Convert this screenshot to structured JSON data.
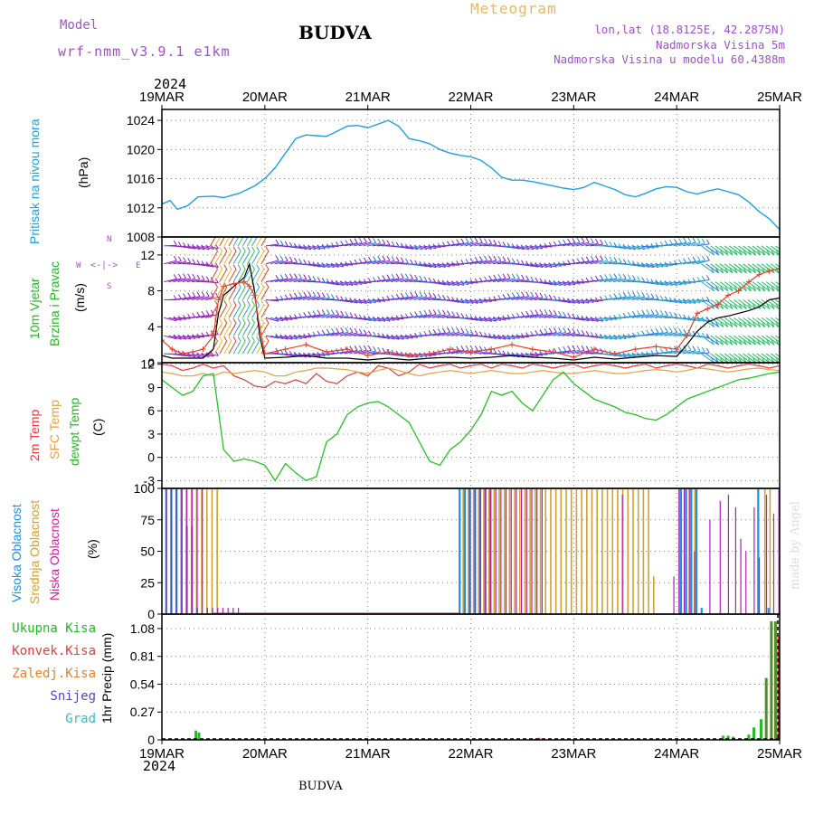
{
  "header": {
    "model_label": "Model",
    "model_name": "wrf-nmm_v3.9.1 e1km",
    "title": "BUDVA",
    "meteogram_label": "Meteogram",
    "lonlat": "lon,lat (18.8125E, 42.2875N)",
    "elevation": "Nadmorska Visina 5m",
    "model_elevation": "Nadmorska Visina u modelu 60.4388m",
    "footer_title": "BUDVA",
    "watermark": "made by Angel"
  },
  "colors": {
    "pressure": "#1ea0e6",
    "wind_speed": "#e8402a",
    "wind_gust": "#000000",
    "temp_2m": "#e03c3c",
    "temp_sfc": "#e8a040",
    "dewpoint": "#22c422",
    "cloud_high": "#1e90e6",
    "cloud_mid": "#d4a030",
    "cloud_low": "#b020b0",
    "precip_total": "#22bb22",
    "precip_conv": "#e83c3c",
    "precip_freezing": "#e88030",
    "snow": "#4848e0",
    "hail": "#30c0c0",
    "purple_text": "#a050d0",
    "gold_text": "#e8b860",
    "grid": "#888888"
  },
  "time_axis": {
    "year": "2024",
    "ticks": [
      "19MAR",
      "20MAR",
      "21MAR",
      "22MAR",
      "23MAR",
      "24MAR",
      "25MAR"
    ]
  },
  "labels": {
    "pressure_title": "Pritisak na nivou mora",
    "pressure_unit": "(hPa)",
    "wind_title1": "10m Vjetar",
    "wind_title2": "Brzina i Pravac",
    "wind_unit": "(m/s)",
    "compass_n": "N",
    "compass_w": "W",
    "compass_e": "E",
    "compass_s": "S",
    "temp_title1": "2m Temp",
    "temp_title2": "SFC Temp",
    "temp_title3": "dewpt Temp",
    "temp_unit": "(C)",
    "cloud_title1": "Visoka Oblacnost",
    "cloud_title2": "Srednja Oblacnost",
    "cloud_title3": "Niska Oblacnost",
    "cloud_unit": "(%)",
    "precip_unit": "1hr Precip (mm)",
    "legend_total": "Ukupna Kisa",
    "legend_conv": "Konvek.Kisa",
    "legend_freezing": "Zaledj.Kisa",
    "legend_snow": "Snijeg",
    "legend_hail": "Grad"
  },
  "chart_data": [
    {
      "type": "line",
      "name": "pressure",
      "ylabel": "(hPa)",
      "ylim": [
        1008,
        1025.5
      ],
      "yticks": [
        "1008",
        "1012",
        "1016",
        "1020",
        "1024"
      ],
      "yticks_values": [
        1008,
        1012,
        1016,
        1020,
        1024
      ],
      "x_days": [
        0,
        0.08,
        0.15,
        0.25,
        0.35,
        0.5,
        0.6,
        0.75,
        0.9,
        1.0,
        1.1,
        1.2,
        1.3,
        1.4,
        1.5,
        1.6,
        1.7,
        1.8,
        1.9,
        2.0,
        2.1,
        2.2,
        2.3,
        2.4,
        2.5,
        2.6,
        2.7,
        2.8,
        2.9,
        3.0,
        3.1,
        3.2,
        3.3,
        3.4,
        3.5,
        3.6,
        3.7,
        3.8,
        3.9,
        4.0,
        4.1,
        4.2,
        4.3,
        4.4,
        4.5,
        4.6,
        4.7,
        4.8,
        4.9,
        5.0,
        5.1,
        5.2,
        5.3,
        5.4,
        5.5,
        5.6,
        5.7,
        5.8,
        5.9,
        6.0
      ],
      "series": [
        {
          "values": [
            1012.5,
            1013.0,
            1011.8,
            1012.3,
            1013.5,
            1013.6,
            1013.4,
            1014.0,
            1015.0,
            1016.0,
            1017.5,
            1019.5,
            1021.5,
            1022.0,
            1021.9,
            1021.8,
            1022.5,
            1023.2,
            1023.3,
            1023.0,
            1023.5,
            1024.0,
            1023.2,
            1021.5,
            1021.2,
            1020.8,
            1020.0,
            1019.5,
            1019.2,
            1019.0,
            1018.5,
            1017.5,
            1016.2,
            1015.8,
            1015.8,
            1015.6,
            1015.3,
            1015.0,
            1014.7,
            1014.5,
            1014.8,
            1015.5,
            1015.0,
            1014.5,
            1013.8,
            1013.5,
            1014.0,
            1014.6,
            1014.9,
            1014.8,
            1014.2,
            1013.9,
            1014.3,
            1014.6,
            1014.2,
            1013.8,
            1012.8,
            1011.5,
            1010.5,
            1009.0
          ]
        }
      ]
    },
    {
      "type": "line",
      "name": "wind",
      "ylabel": "(m/s)",
      "ylim": [
        0,
        14
      ],
      "yticks": [
        "0",
        "4",
        "8",
        "12"
      ],
      "yticks_values": [
        0,
        4,
        8,
        12
      ],
      "x_days": [
        0,
        0.1,
        0.2,
        0.3,
        0.4,
        0.5,
        0.55,
        0.6,
        0.7,
        0.8,
        0.85,
        0.9,
        0.95,
        1.0,
        1.2,
        1.4,
        1.6,
        1.8,
        2.0,
        2.2,
        2.4,
        2.6,
        2.8,
        3.0,
        3.2,
        3.4,
        3.6,
        3.8,
        4.0,
        4.2,
        4.4,
        4.6,
        4.8,
        5.0,
        5.1,
        5.2,
        5.3,
        5.4,
        5.5,
        5.6,
        5.7,
        5.8,
        5.9,
        6.0
      ],
      "series": [
        {
          "name": "speed",
          "values": [
            2.5,
            1.5,
            1.0,
            1.2,
            1.5,
            3.0,
            7.0,
            8.5,
            8.8,
            9.0,
            8.5,
            7.5,
            4.0,
            1.0,
            1.5,
            2.0,
            1.2,
            1.5,
            0.8,
            1.2,
            0.8,
            1.0,
            1.5,
            1.2,
            1.5,
            2.0,
            1.5,
            1.2,
            0.6,
            1.5,
            1.0,
            1.5,
            1.8,
            1.5,
            3.0,
            5.5,
            6.0,
            6.5,
            7.5,
            8.0,
            9.0,
            9.8,
            10.2,
            10.5
          ]
        },
        {
          "name": "gust",
          "values": [
            0.8,
            0.5,
            0.5,
            0.5,
            0.5,
            1.5,
            5.5,
            7.5,
            8.5,
            9.5,
            11.0,
            8.0,
            3.0,
            0.5,
            0.6,
            0.8,
            0.5,
            0.5,
            0.3,
            0.5,
            0.3,
            0.5,
            0.6,
            0.5,
            0.6,
            0.8,
            0.6,
            0.5,
            0.3,
            0.6,
            0.4,
            0.6,
            0.8,
            0.7,
            2.0,
            3.5,
            4.5,
            5.0,
            5.2,
            5.5,
            5.8,
            6.2,
            7.0,
            7.2
          ]
        }
      ]
    },
    {
      "type": "line",
      "name": "temperature",
      "ylabel": "(C)",
      "ylim": [
        -4,
        12.2
      ],
      "yticks": [
        "-3",
        "0",
        "3",
        "6",
        "9",
        "12"
      ],
      "yticks_values": [
        -3,
        0,
        3,
        6,
        9,
        12
      ],
      "x_days": [
        0,
        0.1,
        0.2,
        0.3,
        0.4,
        0.5,
        0.6,
        0.7,
        0.8,
        0.9,
        1.0,
        1.1,
        1.2,
        1.3,
        1.4,
        1.5,
        1.6,
        1.7,
        1.8,
        1.9,
        2.0,
        2.1,
        2.2,
        2.3,
        2.4,
        2.5,
        2.6,
        2.7,
        2.8,
        2.9,
        3.0,
        3.1,
        3.2,
        3.3,
        3.4,
        3.5,
        3.6,
        3.7,
        3.8,
        3.9,
        4.0,
        4.1,
        4.2,
        4.3,
        4.4,
        4.5,
        4.6,
        4.7,
        4.8,
        4.9,
        5.0,
        5.1,
        5.2,
        5.3,
        5.4,
        5.5,
        5.6,
        5.7,
        5.8,
        5.9,
        6.0
      ],
      "series": [
        {
          "name": "2m",
          "values": [
            12.0,
            11.8,
            11.2,
            11.5,
            12.0,
            11.5,
            11.8,
            10.5,
            10.0,
            9.2,
            9.0,
            9.8,
            9.5,
            10.0,
            9.5,
            10.8,
            9.8,
            9.5,
            10.5,
            11.0,
            10.5,
            11.8,
            11.5,
            10.5,
            11.0,
            12.0,
            11.5,
            11.8,
            12.0,
            11.5,
            11.8,
            12.0,
            11.5,
            12.0,
            11.8,
            11.5,
            12.0,
            11.8,
            11.5,
            11.8,
            12.0,
            11.5,
            11.8,
            12.0,
            11.8,
            11.5,
            11.8,
            12.0,
            11.5,
            11.8,
            12.0,
            11.8,
            11.5,
            12.0,
            11.8,
            11.5,
            11.8,
            12.0,
            11.8,
            11.5,
            11.8
          ]
        },
        {
          "name": "sfc",
          "values": [
            11.0,
            10.8,
            10.5,
            10.5,
            10.8,
            10.5,
            11.0,
            10.8,
            11.0,
            11.2,
            11.0,
            10.5,
            10.5,
            11.0,
            11.2,
            11.5,
            11.5,
            11.4,
            11.3,
            11.0,
            10.8,
            11.2,
            11.5,
            11.2,
            10.8,
            10.5,
            10.8,
            11.0,
            11.2,
            11.0,
            10.8,
            11.0,
            11.2,
            11.0,
            10.8,
            10.8,
            11.0,
            11.2,
            11.0,
            10.8,
            10.8,
            11.0,
            11.2,
            11.0,
            10.8,
            10.8,
            11.0,
            11.2,
            11.3,
            11.2,
            11.0,
            11.2,
            11.5,
            11.4,
            11.2,
            11.0,
            11.2,
            11.4,
            11.5,
            11.3,
            11.2
          ]
        },
        {
          "name": "dewpt",
          "values": [
            10.0,
            9.0,
            8.0,
            8.5,
            10.5,
            10.8,
            1.0,
            -0.5,
            -0.2,
            -0.5,
            -1.0,
            -3.0,
            -0.8,
            -2.0,
            -3.0,
            -2.5,
            2.0,
            3.0,
            5.5,
            6.5,
            7.0,
            7.2,
            6.5,
            5.5,
            4.5,
            2.0,
            -0.5,
            -1.0,
            1.0,
            2.0,
            3.5,
            5.5,
            8.5,
            8.0,
            8.5,
            7.0,
            6.0,
            8.0,
            10.0,
            11.0,
            9.5,
            8.5,
            7.5,
            7.0,
            6.5,
            5.8,
            5.5,
            5.0,
            4.8,
            5.5,
            6.5,
            7.5,
            8.0,
            8.5,
            9.0,
            9.5,
            10.0,
            10.2,
            10.5,
            10.8,
            11.0
          ]
        }
      ]
    },
    {
      "type": "bar",
      "name": "cloud_cover",
      "ylabel": "(%)",
      "ylim": [
        0,
        100
      ],
      "yticks": [
        "0",
        "25",
        "50",
        "75",
        "100"
      ],
      "yticks_values": [
        0,
        25,
        50,
        75,
        100
      ],
      "series": [
        {
          "name": "high",
          "x_days": [
            0.05,
            0.1,
            0.15,
            0.2,
            0.25,
            0.3,
            0.35,
            2.9,
            2.95,
            3.0,
            3.05,
            3.1,
            3.15,
            3.2,
            3.25,
            3.3,
            3.35,
            3.4,
            3.45,
            3.5,
            3.55,
            3.6,
            3.65,
            3.7,
            3.75,
            3.8,
            3.85,
            3.9,
            3.95,
            4.0,
            4.05,
            4.1,
            4.15,
            4.2,
            4.25,
            4.3,
            4.35,
            4.4,
            4.45,
            4.5,
            4.55,
            4.6,
            4.65,
            4.7,
            4.75,
            4.8,
            4.85,
            4.9,
            4.95,
            5.0,
            5.05,
            5.1,
            5.15,
            5.2,
            5.25,
            5.3,
            5.35,
            5.4,
            5.45,
            5.5,
            5.55,
            5.6,
            5.65,
            5.7,
            5.75,
            5.8,
            5.85,
            5.9
          ],
          "values": [
            100,
            100,
            100,
            100,
            70,
            70,
            5,
            100,
            100,
            100,
            100,
            100,
            100,
            100,
            0,
            0,
            0,
            0,
            0,
            0,
            0,
            0,
            0,
            0,
            0,
            0,
            0,
            0,
            0,
            0,
            0,
            0,
            0,
            0,
            0,
            0,
            0,
            0,
            0,
            0,
            0,
            0,
            0,
            0,
            0,
            0,
            0,
            0,
            0,
            0,
            100,
            100,
            100,
            100,
            5,
            0,
            0,
            0,
            0,
            0,
            0,
            0,
            0,
            0,
            0,
            100,
            0,
            5
          ]
        },
        {
          "name": "middle",
          "x_days": [
            0.08,
            0.13,
            0.18,
            0.23,
            0.28,
            0.33,
            0.38,
            0.43,
            0.48,
            0.53,
            2.92,
            2.97,
            3.02,
            3.07,
            3.12,
            3.17,
            3.22,
            3.27,
            3.32,
            3.37,
            3.42,
            3.47,
            3.52,
            3.57,
            3.62,
            3.67,
            3.72,
            3.77,
            3.82,
            3.87,
            3.92,
            3.97,
            4.02,
            4.07,
            4.12,
            4.17,
            4.22,
            4.27,
            4.32,
            4.37,
            4.42,
            4.47,
            4.52,
            4.57,
            4.62,
            4.67,
            4.72,
            4.77,
            5.02,
            5.07,
            5.12,
            5.17,
            5.85,
            5.9
          ],
          "values": [
            100,
            100,
            100,
            100,
            100,
            100,
            100,
            100,
            100,
            100,
            100,
            100,
            100,
            100,
            100,
            100,
            100,
            100,
            100,
            100,
            100,
            100,
            100,
            100,
            100,
            100,
            100,
            100,
            100,
            100,
            100,
            100,
            100,
            100,
            100,
            100,
            100,
            100,
            100,
            100,
            100,
            100,
            100,
            100,
            100,
            100,
            100,
            30,
            100,
            100,
            100,
            100,
            100,
            100
          ]
        },
        {
          "name": "low",
          "x_days": [
            0.02,
            0.07,
            0.12,
            0.17,
            0.22,
            0.27,
            0.32,
            0.37,
            0.42,
            0.47,
            0.52,
            0.57,
            0.62,
            0.67,
            0.72,
            2.97,
            3.02,
            3.07,
            3.12,
            3.17,
            3.22,
            3.27,
            3.32,
            3.37,
            3.42,
            3.47,
            3.52,
            3.57,
            3.62,
            3.67,
            4.45,
            4.95,
            5.0,
            5.05,
            5.1,
            5.15,
            5.3,
            5.4,
            5.48,
            5.55,
            5.6,
            5.65,
            5.73,
            5.78,
            5.85,
            5.92,
            5.97
          ],
          "values": [
            100,
            100,
            100,
            100,
            100,
            100,
            100,
            100,
            5,
            5,
            5,
            5,
            5,
            5,
            5,
            100,
            100,
            100,
            100,
            100,
            100,
            100,
            100,
            100,
            100,
            100,
            100,
            100,
            100,
            100,
            95,
            30,
            100,
            100,
            100,
            50,
            75,
            90,
            95,
            85,
            60,
            50,
            85,
            45,
            95,
            80,
            100
          ]
        }
      ]
    },
    {
      "type": "bar",
      "name": "precipitation",
      "ylabel": "1hr Precip (mm)",
      "ylim": [
        0,
        1.22
      ],
      "yticks": [
        "0",
        "0.27",
        "0.54",
        "0.81",
        "1.08"
      ],
      "yticks_values": [
        0,
        0.27,
        0.54,
        0.81,
        1.08
      ],
      "series": [
        {
          "name": "total",
          "x_days": [
            0.3,
            0.33,
            0.36,
            5.45,
            5.5,
            5.55,
            5.7,
            5.75,
            5.82,
            5.87,
            5.92,
            5.96
          ],
          "values": [
            0.01,
            0.09,
            0.07,
            0.04,
            0.04,
            0.03,
            0.05,
            0.12,
            0.2,
            0.6,
            1.15,
            1.15
          ]
        },
        {
          "name": "convective",
          "x_days": [
            3.6,
            3.65,
            5.97
          ],
          "values": [
            0.01,
            0.02,
            1.0
          ]
        },
        {
          "name": "freezing",
          "x_days": [
            3.62
          ],
          "values": [
            0.01
          ]
        }
      ]
    }
  ]
}
